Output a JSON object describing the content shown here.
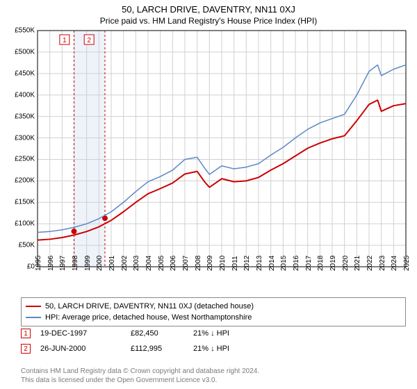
{
  "titles": {
    "line1": "50, LARCH DRIVE, DAVENTRY, NN11 0XJ",
    "line2": "Price paid vs. HM Land Registry's House Price Index (HPI)"
  },
  "chart": {
    "type": "line",
    "background_color": "#ffffff",
    "grid_color": "#d0d0d0",
    "axis_color": "#000000",
    "x": {
      "years": [
        1995,
        1996,
        1997,
        1998,
        1999,
        2000,
        2001,
        2002,
        2003,
        2004,
        2005,
        2006,
        2007,
        2008,
        2009,
        2010,
        2011,
        2012,
        2013,
        2014,
        2015,
        2016,
        2017,
        2018,
        2019,
        2020,
        2021,
        2022,
        2023,
        2024,
        2025
      ],
      "min": 1995,
      "max": 2025
    },
    "y": {
      "min": 0,
      "max": 550000,
      "step": 50000,
      "prefix": "£",
      "labels": [
        "£0",
        "£50K",
        "£100K",
        "£150K",
        "£200K",
        "£250K",
        "£300K",
        "£350K",
        "£400K",
        "£450K",
        "£500K",
        "£550K"
      ]
    },
    "band": {
      "start": 1997.97,
      "end": 2000.49,
      "fill": "#eef3fa"
    },
    "sale_markers": [
      {
        "x": 1997.97,
        "y": 82450,
        "dash_color": "#cc0000",
        "dot_color": "#cc0000"
      },
      {
        "x": 2000.49,
        "y": 112995,
        "dash_color": "#cc0000",
        "dot_color": "#cc0000"
      }
    ],
    "marker_labels": [
      {
        "x": 1997.2,
        "num": "1"
      },
      {
        "x": 1999.2,
        "num": "2"
      }
    ],
    "series": [
      {
        "name": "hpi",
        "color": "#5a88c6",
        "width": 1.5,
        "values": [
          [
            1995,
            80000
          ],
          [
            1996,
            82000
          ],
          [
            1997,
            86000
          ],
          [
            1998,
            92000
          ],
          [
            1999,
            100000
          ],
          [
            2000,
            112000
          ],
          [
            2001,
            128000
          ],
          [
            2002,
            150000
          ],
          [
            2003,
            175000
          ],
          [
            2004,
            198000
          ],
          [
            2005,
            210000
          ],
          [
            2006,
            225000
          ],
          [
            2007,
            250000
          ],
          [
            2008,
            255000
          ],
          [
            2008.6,
            230000
          ],
          [
            2009,
            215000
          ],
          [
            2010,
            235000
          ],
          [
            2011,
            228000
          ],
          [
            2012,
            232000
          ],
          [
            2013,
            240000
          ],
          [
            2014,
            260000
          ],
          [
            2015,
            278000
          ],
          [
            2016,
            300000
          ],
          [
            2017,
            320000
          ],
          [
            2018,
            335000
          ],
          [
            2019,
            345000
          ],
          [
            2020,
            355000
          ],
          [
            2021,
            400000
          ],
          [
            2022,
            455000
          ],
          [
            2022.7,
            470000
          ],
          [
            2023,
            445000
          ],
          [
            2024,
            460000
          ],
          [
            2025,
            470000
          ]
        ]
      },
      {
        "name": "property",
        "color": "#cc0000",
        "width": 2,
        "values": [
          [
            1995,
            62000
          ],
          [
            1996,
            64000
          ],
          [
            1997,
            68000
          ],
          [
            1998,
            74000
          ],
          [
            1999,
            82000
          ],
          [
            2000,
            93000
          ],
          [
            2001,
            108000
          ],
          [
            2002,
            128000
          ],
          [
            2003,
            150000
          ],
          [
            2004,
            170000
          ],
          [
            2005,
            182000
          ],
          [
            2006,
            195000
          ],
          [
            2007,
            216000
          ],
          [
            2008,
            222000
          ],
          [
            2008.6,
            198000
          ],
          [
            2009,
            185000
          ],
          [
            2010,
            205000
          ],
          [
            2011,
            198000
          ],
          [
            2012,
            200000
          ],
          [
            2013,
            208000
          ],
          [
            2014,
            225000
          ],
          [
            2015,
            240000
          ],
          [
            2016,
            258000
          ],
          [
            2017,
            276000
          ],
          [
            2018,
            288000
          ],
          [
            2019,
            298000
          ],
          [
            2020,
            305000
          ],
          [
            2021,
            340000
          ],
          [
            2022,
            378000
          ],
          [
            2022.7,
            388000
          ],
          [
            2023,
            362000
          ],
          [
            2024,
            375000
          ],
          [
            2025,
            380000
          ]
        ]
      }
    ],
    "label_fontsize": 10,
    "title_fontsize": 13
  },
  "legend": {
    "items": [
      {
        "label": "50, LARCH DRIVE, DAVENTRY, NN11 0XJ (detached house)",
        "color": "#cc0000"
      },
      {
        "label": "HPI: Average price, detached house, West Northamptonshire",
        "color": "#5a88c6"
      }
    ]
  },
  "events": [
    {
      "num": "1",
      "date": "19-DEC-1997",
      "price": "£82,450",
      "diff": "21% ↓ HPI"
    },
    {
      "num": "2",
      "date": "26-JUN-2000",
      "price": "£112,995",
      "diff": "21% ↓ HPI"
    }
  ],
  "footer": {
    "line1": "Contains HM Land Registry data © Crown copyright and database right 2024.",
    "line2": "This data is licensed under the Open Government Licence v3.0."
  }
}
